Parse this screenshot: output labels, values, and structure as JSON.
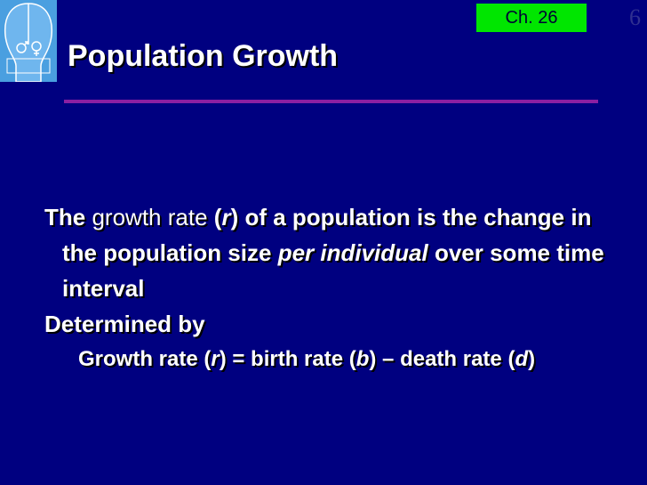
{
  "header": {
    "chapter": "Ch. 26",
    "slide_number": "6"
  },
  "title": "Population Growth",
  "bullets": {
    "b1": {
      "the": "The",
      "growth_rate": "growth rate",
      "open": "(",
      "r": "r",
      "close_rest": ") of a population is the change in the population size",
      "per_individual": "per individual",
      "rest": "over some time interval"
    },
    "b2": "Determined by",
    "sub": {
      "p1": "Growth rate (",
      "r": "r",
      "p2": ") = birth rate (",
      "b": "b",
      "p3": ") – death rate (",
      "d": "d",
      "p4": ")"
    }
  },
  "colors": {
    "background": "#000080",
    "badge": "#00e600",
    "rule": "#8b1fa2",
    "logo": "#4a9fe0"
  },
  "logo_icon": "male-female-silhouette-icon"
}
